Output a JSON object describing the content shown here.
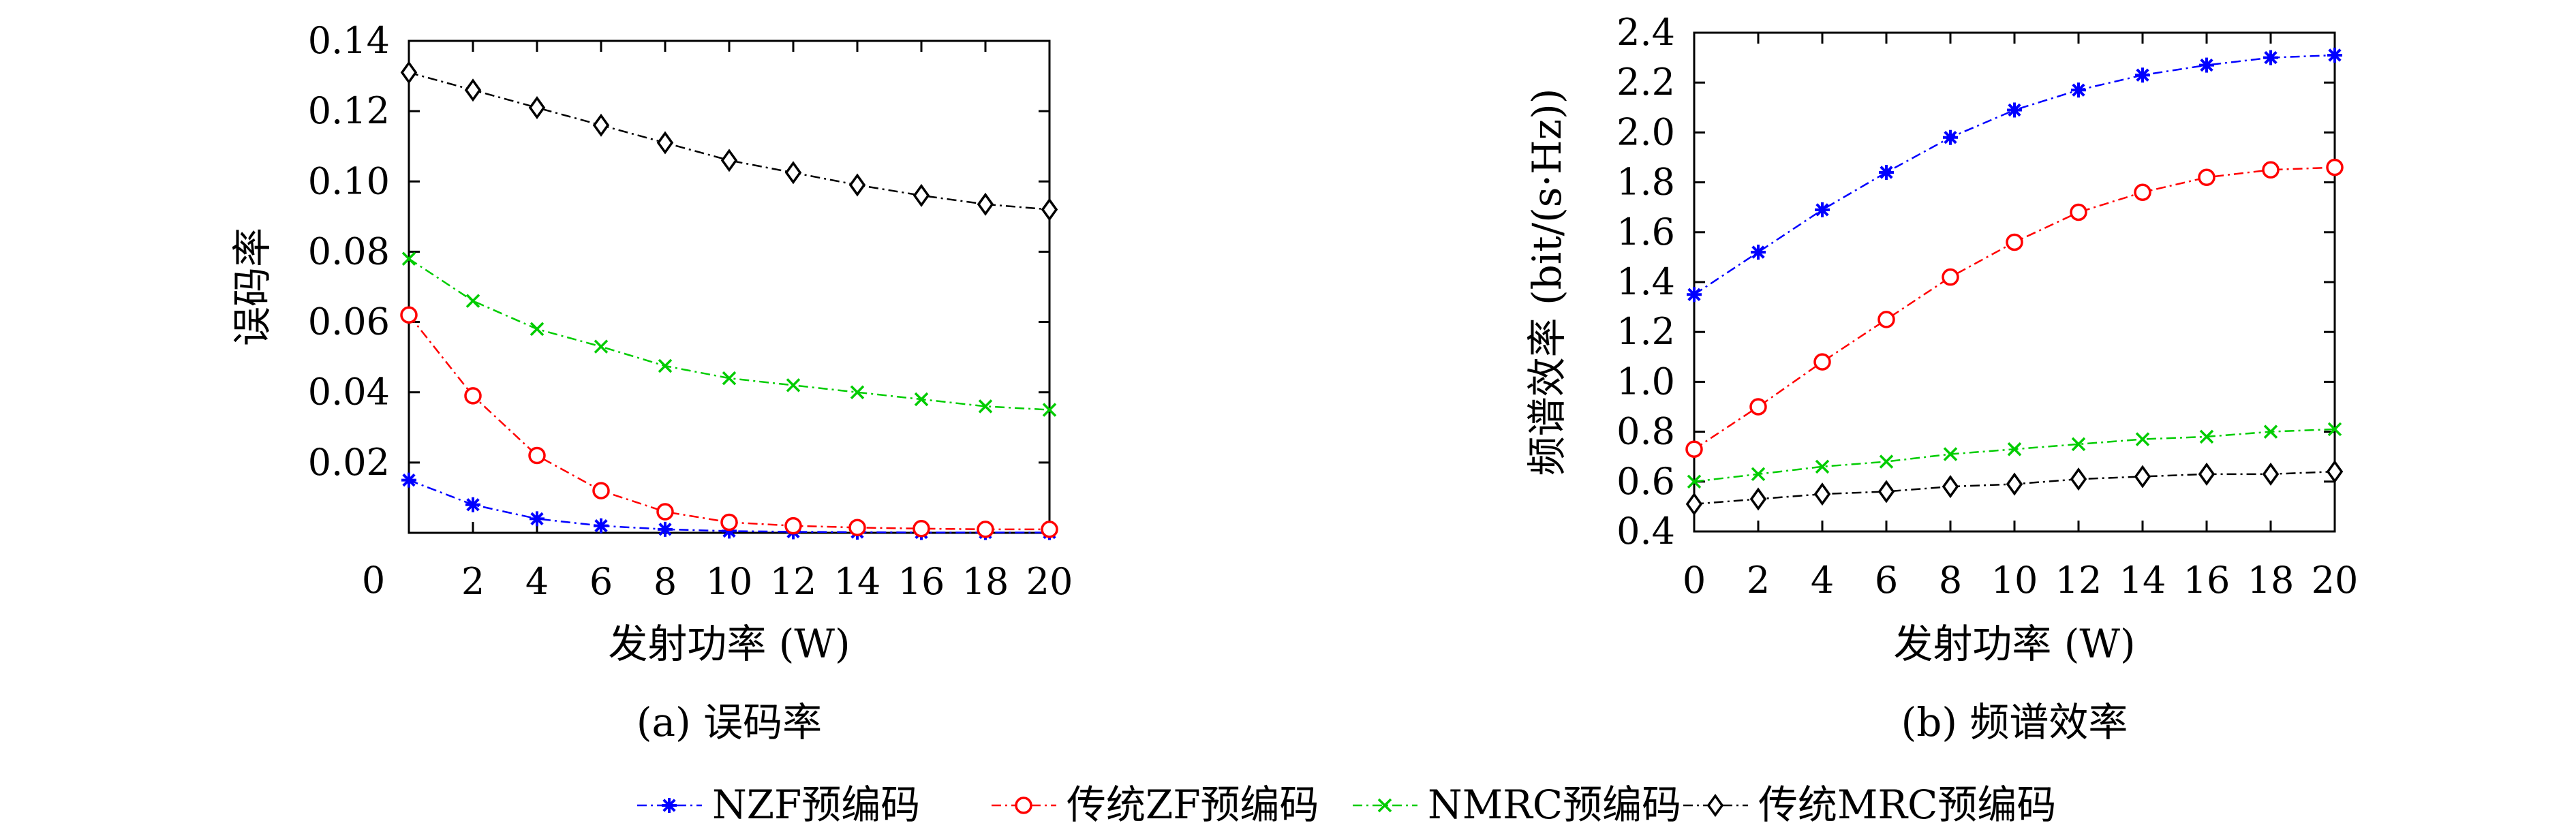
{
  "figure": {
    "legend": [
      {
        "label": "NZF预编码",
        "color": "#0000ff",
        "marker": "star"
      },
      {
        "label": "传统ZF预编码",
        "color": "#ff0000",
        "marker": "circle"
      },
      {
        "label": "NMRC预编码",
        "color": "#00cc00",
        "marker": "x"
      },
      {
        "label": "传统MRC预编码",
        "color": "#000000",
        "marker": "diamond"
      }
    ]
  },
  "chart_data": [
    {
      "type": "line",
      "caption": "(a) 误码率",
      "xlabel": "发射功率 (W)",
      "ylabel": "误码率",
      "xlim": [
        0,
        20
      ],
      "ylim": [
        0,
        0.14
      ],
      "xticks": [
        "0",
        "2",
        "4",
        "6",
        "8",
        "10",
        "12",
        "14",
        "16",
        "18",
        "20"
      ],
      "yticks": [
        "0.02",
        "0.04",
        "0.06",
        "0.08",
        "0.10",
        "0.12",
        "0.14"
      ],
      "x": [
        0,
        2,
        4,
        6,
        8,
        10,
        12,
        14,
        16,
        18,
        20
      ],
      "grid": false,
      "series": [
        {
          "name": "NZF预编码",
          "values": [
            0.015,
            0.008,
            0.004,
            0.002,
            0.001,
            0.0005,
            0.0003,
            0.0002,
            0.0001,
            0.0001,
            0.0001
          ]
        },
        {
          "name": "传统ZF预编码",
          "values": [
            0.062,
            0.039,
            0.022,
            0.012,
            0.006,
            0.003,
            0.002,
            0.0015,
            0.0012,
            0.001,
            0.001
          ]
        },
        {
          "name": "NMRC预编码",
          "values": [
            0.078,
            0.066,
            0.058,
            0.053,
            0.0475,
            0.044,
            0.042,
            0.04,
            0.038,
            0.036,
            0.035
          ]
        },
        {
          "name": "传统MRC预编码",
          "values": [
            0.131,
            0.126,
            0.121,
            0.116,
            0.111,
            0.106,
            0.1025,
            0.099,
            0.096,
            0.0935,
            0.092
          ]
        }
      ]
    },
    {
      "type": "line",
      "caption": "(b) 频谱效率",
      "xlabel": "发射功率 (W)",
      "ylabel": "频谱效率 (bit/(s·Hz))",
      "xlim": [
        0,
        20
      ],
      "ylim": [
        0.4,
        2.4
      ],
      "xticks": [
        "0",
        "2",
        "4",
        "6",
        "8",
        "10",
        "12",
        "14",
        "16",
        "18",
        "20"
      ],
      "yticks": [
        "0.4",
        "0.6",
        "0.8",
        "1.0",
        "1.2",
        "1.4",
        "1.6",
        "1.8",
        "2.0",
        "2.2",
        "2.4"
      ],
      "x": [
        0,
        2,
        4,
        6,
        8,
        10,
        12,
        14,
        16,
        18,
        20
      ],
      "grid": false,
      "series": [
        {
          "name": "NZF预编码",
          "values": [
            1.35,
            1.52,
            1.69,
            1.84,
            1.98,
            2.09,
            2.17,
            2.23,
            2.27,
            2.3,
            2.31
          ]
        },
        {
          "name": "传统ZF预编码",
          "values": [
            0.73,
            0.9,
            1.08,
            1.25,
            1.42,
            1.56,
            1.68,
            1.76,
            1.82,
            1.85,
            1.86
          ]
        },
        {
          "name": "NMRC预编码",
          "values": [
            0.6,
            0.63,
            0.66,
            0.68,
            0.71,
            0.73,
            0.75,
            0.77,
            0.78,
            0.8,
            0.81
          ]
        },
        {
          "name": "传统MRC预编码",
          "values": [
            0.51,
            0.53,
            0.55,
            0.56,
            0.58,
            0.59,
            0.61,
            0.62,
            0.63,
            0.63,
            0.64
          ]
        }
      ]
    }
  ]
}
